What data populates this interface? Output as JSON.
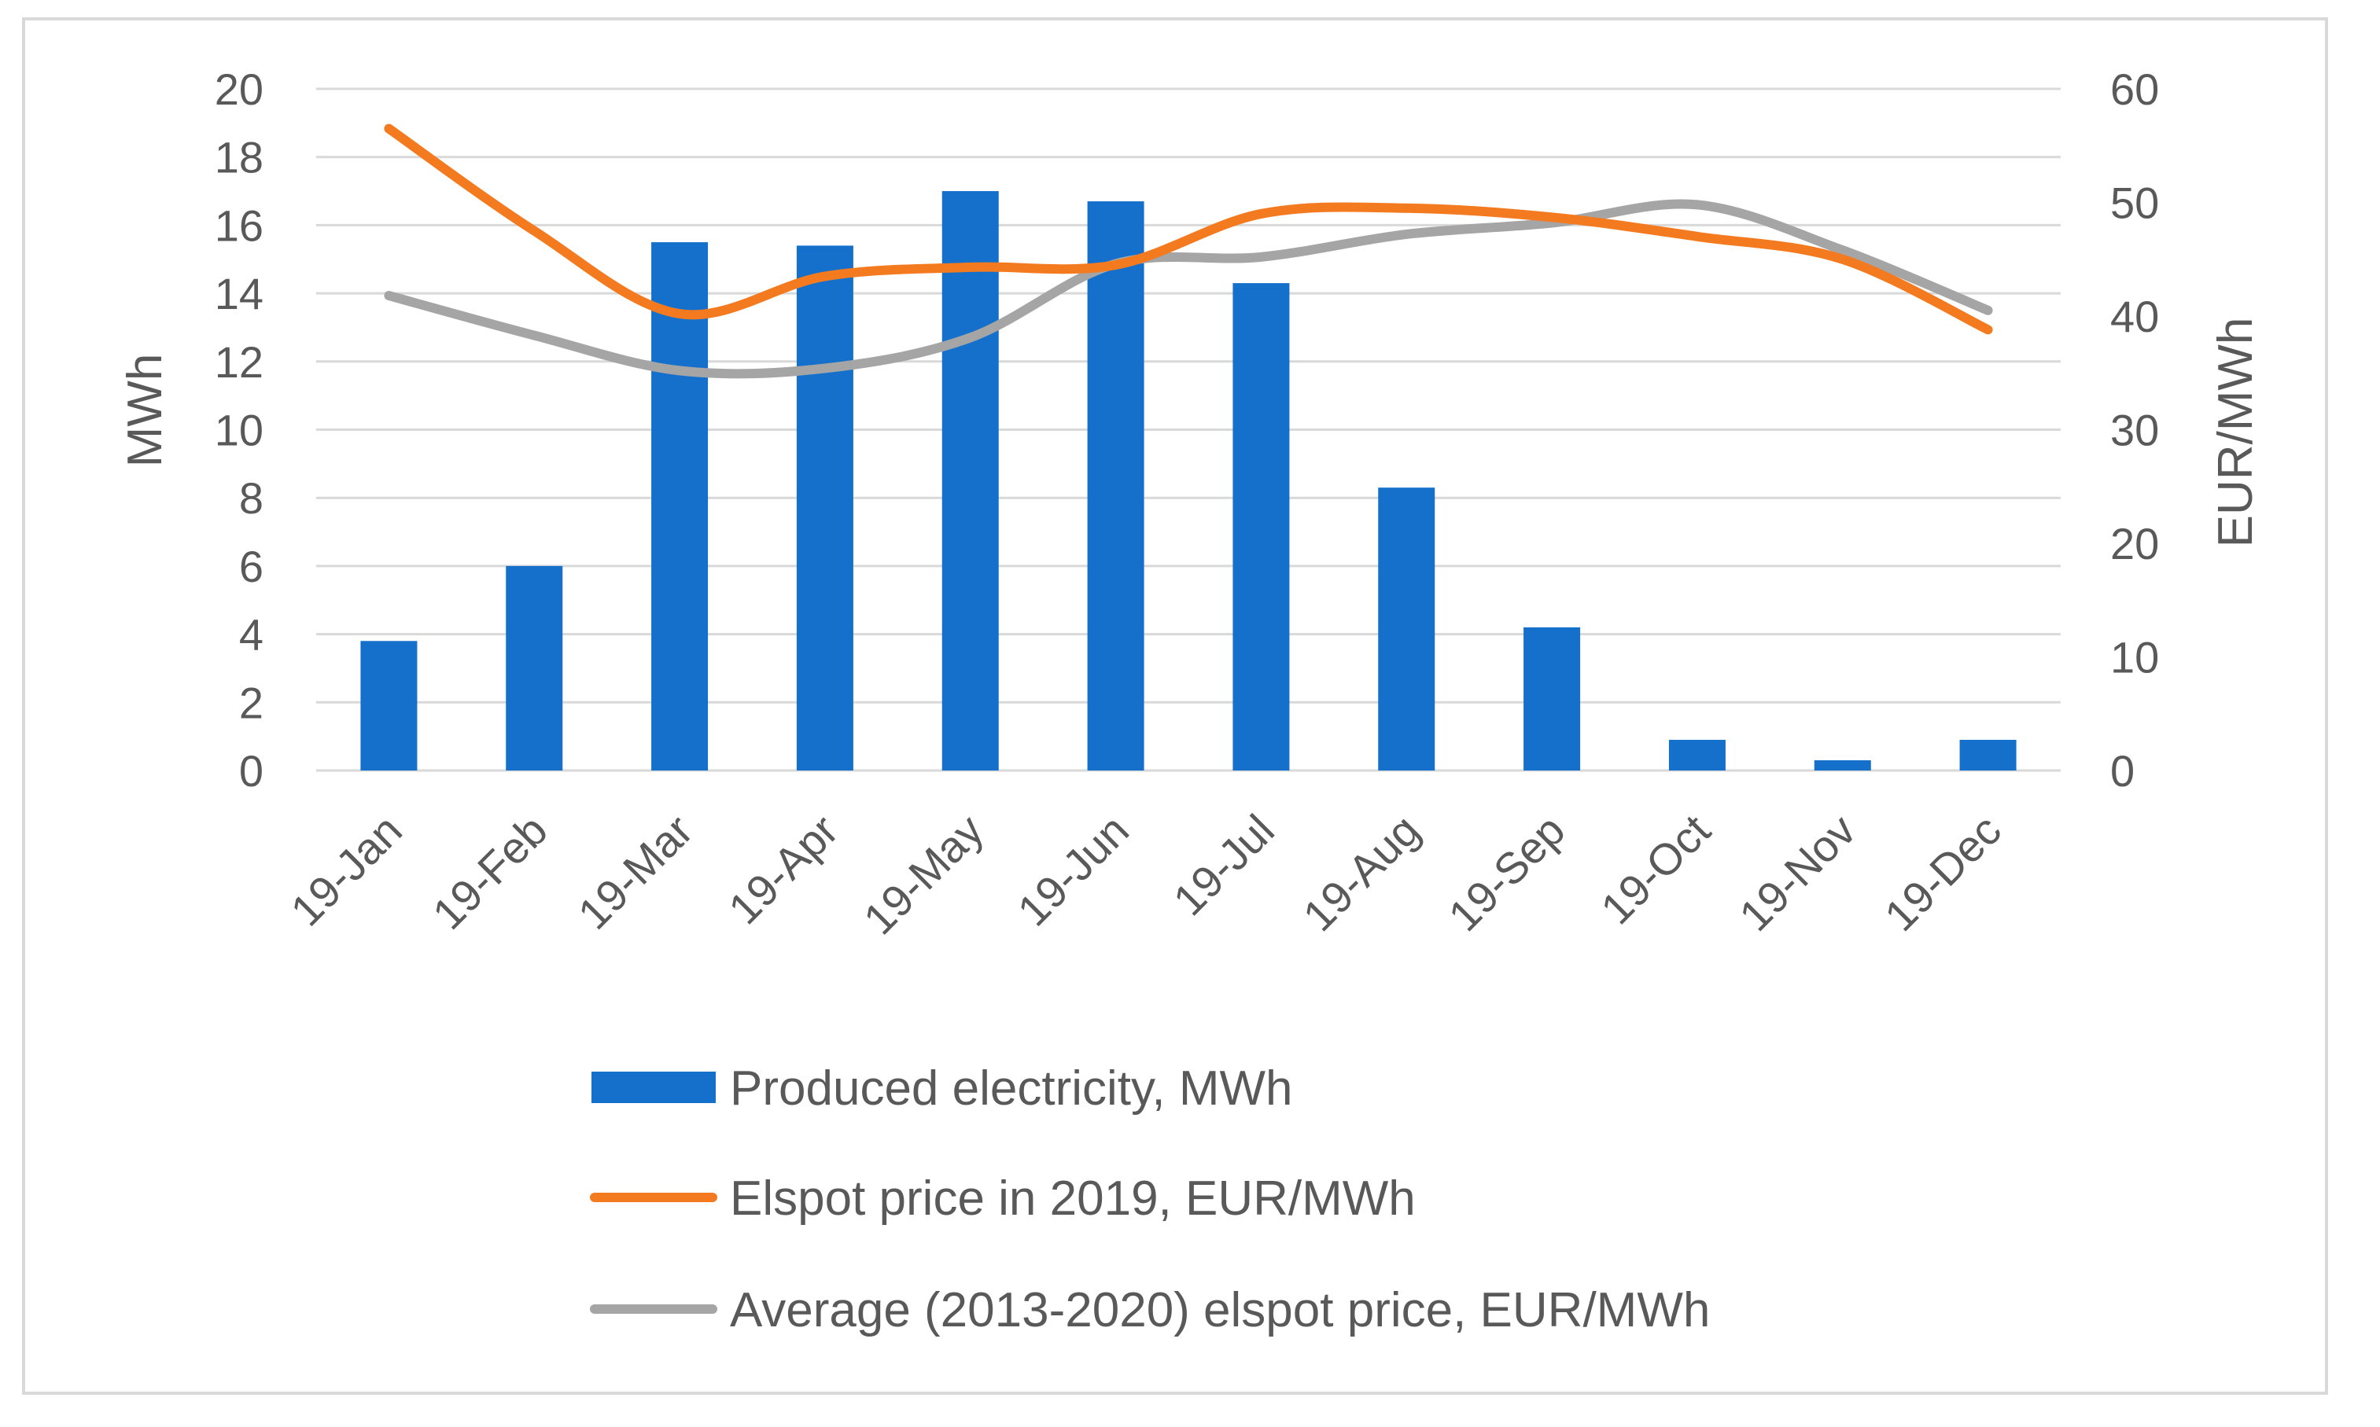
{
  "chart_data": {
    "type": "bar+line",
    "categories": [
      "19-Jan",
      "19-Feb",
      "19-Mar",
      "19-Apr",
      "19-May",
      "19-Jun",
      "19-Jul",
      "19-Aug",
      "19-Sep",
      "19-Oct",
      "19-Nov",
      "19-Dec"
    ],
    "series": [
      {
        "name": "Produced electricity,  MWh",
        "type": "bar",
        "axis": "left",
        "color": "#1570CC",
        "values": [
          3.8,
          6.0,
          15.5,
          15.4,
          17.0,
          16.7,
          14.3,
          8.3,
          4.2,
          0.9,
          0.3,
          0.9
        ]
      },
      {
        "name": "Elspot price in 2019, EUR/MWh",
        "type": "line",
        "axis": "right",
        "color": "#F47A20",
        "values": [
          56.5,
          47.5,
          40.2,
          43.5,
          44.3,
          44.5,
          49.0,
          49.5,
          48.7,
          47.0,
          45.0,
          38.8
        ]
      },
      {
        "name": "Average (2013-2020) elspot price, EUR/MWh",
        "type": "line",
        "axis": "right",
        "color": "#A5A5A5",
        "values": [
          41.8,
          38.3,
          35.2,
          35.4,
          38.1,
          44.6,
          45.2,
          47.2,
          48.2,
          49.8,
          45.8,
          40.5
        ]
      }
    ],
    "y_left": {
      "label": "MWh",
      "min": 0,
      "max": 20,
      "ticks": [
        "0",
        "2",
        "4",
        "6",
        "8",
        "10",
        "12",
        "14",
        "16",
        "18",
        "20"
      ]
    },
    "y_right": {
      "label": "EUR/MWh",
      "min": 0,
      "max": 60,
      "ticks": [
        "0",
        "10",
        "20",
        "30",
        "40",
        "50",
        "60"
      ]
    },
    "grid": true,
    "legend_position": "bottom"
  }
}
